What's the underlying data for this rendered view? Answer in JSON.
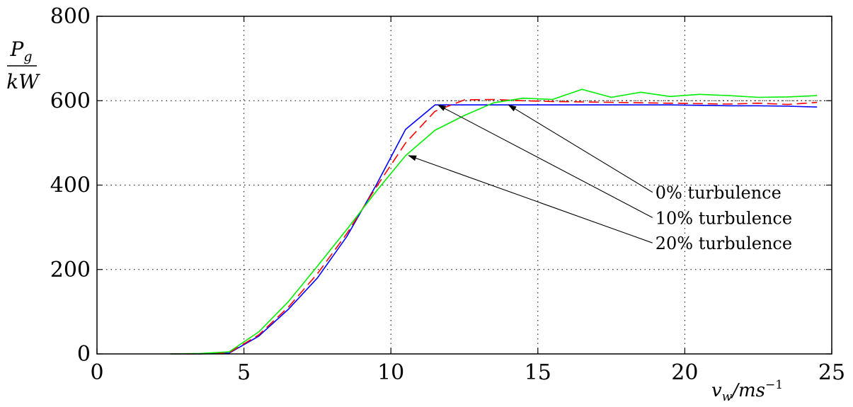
{
  "chart_data": {
    "type": "line",
    "title": "",
    "xlabel_base": "v",
    "xlabel_sub": "w",
    "xlabel_unit": "/ms",
    "xlabel_sup": "−1",
    "ylabel_num_base": "P",
    "ylabel_num_sub": "g",
    "ylabel_den": "kW",
    "xlim": [
      0,
      25
    ],
    "ylim": [
      0,
      800
    ],
    "xticks": [
      0,
      5,
      10,
      15,
      20,
      25
    ],
    "yticks": [
      0,
      200,
      400,
      600,
      800
    ],
    "xtick_labels": [
      "0",
      "5",
      "10",
      "15",
      "20",
      "25"
    ],
    "ytick_labels": [
      "0",
      "200",
      "400",
      "600",
      "800"
    ],
    "grid": true,
    "rated_power_line": 600,
    "series": [
      {
        "key": "0pct",
        "color": "#0000ff",
        "style": "solid",
        "points": [
          [
            2.5,
            0
          ],
          [
            3.5,
            0
          ],
          [
            4.5,
            2
          ],
          [
            5.5,
            42
          ],
          [
            6.5,
            105
          ],
          [
            7.5,
            180
          ],
          [
            8.5,
            278
          ],
          [
            9.5,
            400
          ],
          [
            10.5,
            532
          ],
          [
            11.5,
            590
          ],
          [
            12.5,
            590
          ],
          [
            13.5,
            590
          ],
          [
            14.5,
            590
          ],
          [
            15.5,
            590
          ],
          [
            16.5,
            590
          ],
          [
            17.5,
            590
          ],
          [
            18.5,
            590
          ],
          [
            19.5,
            590
          ],
          [
            20.5,
            589
          ],
          [
            21.5,
            588
          ],
          [
            22.5,
            588
          ],
          [
            23.5,
            587
          ],
          [
            24.5,
            585
          ]
        ]
      },
      {
        "key": "10pct",
        "color": "#ff0000",
        "style": "dashed",
        "points": [
          [
            2.5,
            0
          ],
          [
            3.5,
            0
          ],
          [
            4.5,
            3
          ],
          [
            5.5,
            45
          ],
          [
            6.5,
            110
          ],
          [
            7.5,
            190
          ],
          [
            8.5,
            285
          ],
          [
            9.5,
            395
          ],
          [
            10.5,
            500
          ],
          [
            11.5,
            575
          ],
          [
            12.5,
            602
          ],
          [
            13.5,
            603
          ],
          [
            14.5,
            600
          ],
          [
            15.5,
            598
          ],
          [
            16.5,
            597
          ],
          [
            17.5,
            596
          ],
          [
            18.5,
            595
          ],
          [
            19.5,
            594
          ],
          [
            20.5,
            593
          ],
          [
            21.5,
            592
          ],
          [
            22.5,
            594
          ],
          [
            23.5,
            591
          ],
          [
            24.5,
            596
          ]
        ]
      },
      {
        "key": "20pct",
        "color": "#00ee00",
        "style": "solid",
        "points": [
          [
            2.5,
            0
          ],
          [
            3.5,
            1
          ],
          [
            4.5,
            5
          ],
          [
            5.5,
            52
          ],
          [
            6.5,
            123
          ],
          [
            7.5,
            208
          ],
          [
            8.5,
            295
          ],
          [
            9.5,
            385
          ],
          [
            10.5,
            470
          ],
          [
            11.5,
            530
          ],
          [
            12.5,
            565
          ],
          [
            13.5,
            595
          ],
          [
            14.5,
            606
          ],
          [
            15.5,
            603
          ],
          [
            16.5,
            627
          ],
          [
            17.5,
            608
          ],
          [
            18.5,
            620
          ],
          [
            19.5,
            610
          ],
          [
            20.5,
            615
          ],
          [
            21.5,
            612
          ],
          [
            22.5,
            608
          ],
          [
            23.5,
            609
          ],
          [
            24.5,
            612
          ]
        ]
      }
    ],
    "annotations": [
      {
        "text": "0% turbulence",
        "target": [
          14.0,
          590
        ],
        "anchor": [
          18.9,
          383
        ]
      },
      {
        "text": "10% turbulence",
        "target": [
          11.6,
          590
        ],
        "anchor": [
          18.9,
          323
        ]
      },
      {
        "text": "20% turbulence",
        "target": [
          10.6,
          470
        ],
        "anchor": [
          18.9,
          263
        ]
      }
    ]
  }
}
